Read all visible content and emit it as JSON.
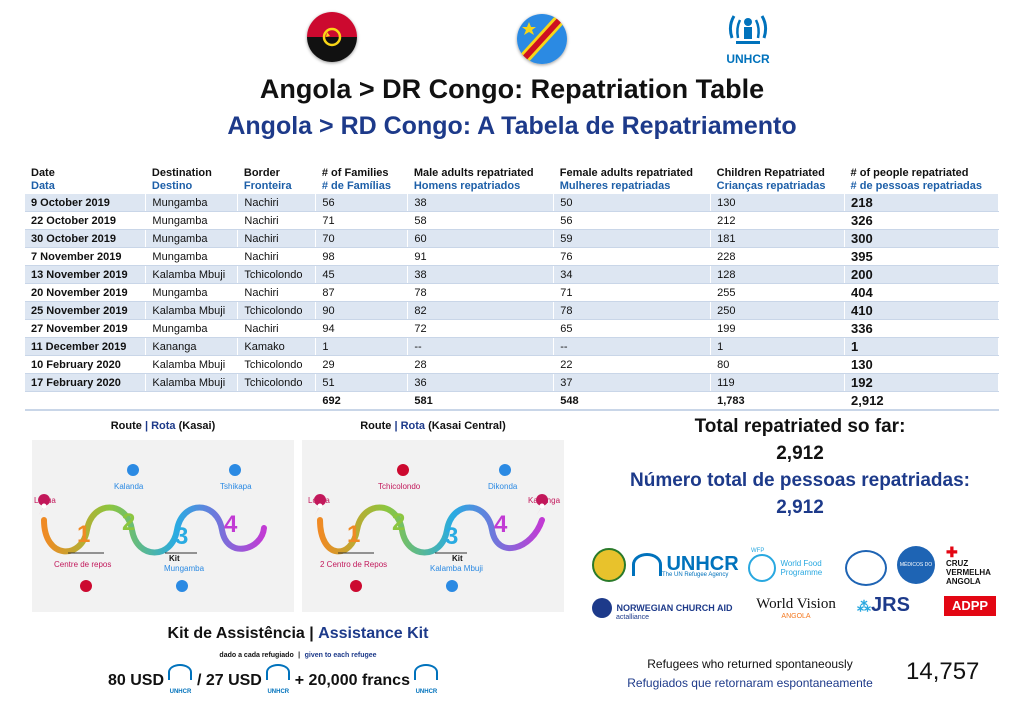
{
  "header": {
    "unhcr_label": "UNHCR",
    "title_en": "Angola > DR Congo: Repatriation Table",
    "title_pt": "Angola > RD Congo: A Tabela de Repatriamento"
  },
  "table": {
    "columns": [
      {
        "en": "Date",
        "pt": "Data"
      },
      {
        "en": "Destination",
        "pt": "Destino"
      },
      {
        "en": "Border",
        "pt": "Fronteira"
      },
      {
        "en": "# of Families",
        "pt": "# de Famílias"
      },
      {
        "en": "Male adults repatriated",
        "pt": "Homens repatriados"
      },
      {
        "en": "Female adults repatriated",
        "pt": "Mulheres repatriadas"
      },
      {
        "en": "Children Repatriated",
        "pt": "Crianças repatriadas"
      },
      {
        "en": "# of people repatriated",
        "pt": "# de pessoas repatriadas"
      }
    ],
    "rows": [
      [
        "9 October 2019",
        "Mungamba",
        "Nachiri",
        "56",
        "38",
        "50",
        "130",
        "218"
      ],
      [
        "22 October 2019",
        "Mungamba",
        "Nachiri",
        "71",
        "58",
        "56",
        "212",
        "326"
      ],
      [
        "30 October 2019",
        "Mungamba",
        "Nachiri",
        "70",
        "60",
        "59",
        "181",
        "300"
      ],
      [
        "7 November 2019",
        "Mungamba",
        "Nachiri",
        "98",
        "91",
        "76",
        "228",
        "395"
      ],
      [
        "13 November 2019",
        "Kalamba Mbuji",
        "Tchicolondo",
        "45",
        "38",
        "34",
        "128",
        "200"
      ],
      [
        "20 November 2019",
        "Mungamba",
        "Nachiri",
        "87",
        "78",
        "71",
        "255",
        "404"
      ],
      [
        "25 November 2019",
        "Kalamba Mbuji",
        "Tchicolondo",
        "90",
        "82",
        "78",
        "250",
        "410"
      ],
      [
        "27 November 2019",
        "Mungamba",
        "Nachiri",
        "94",
        "72",
        "65",
        "199",
        "336"
      ],
      [
        "11 December 2019",
        "Kananga",
        "Kamako",
        "1",
        "--",
        "--",
        "1",
        "1"
      ],
      [
        "10 February 2020",
        "Kalamba Mbuji",
        "Tchicolondo",
        "29",
        "28",
        "22",
        "80",
        "130"
      ],
      [
        "17 February 2020",
        "Kalamba Mbuji",
        "Tchicolondo",
        "51",
        "36",
        "37",
        "119",
        "192"
      ]
    ],
    "totals": [
      "",
      "",
      "",
      "692",
      "581",
      "548",
      "1,783",
      "2,912"
    ]
  },
  "routes": {
    "kasai": {
      "title_en": "Route",
      "sep": "|",
      "title_pt": "Rota",
      "region": "(Kasai)",
      "stops": {
        "start": "Lóvua",
        "s1": "Centre de repos",
        "s2": "Kalanda",
        "s3": "Mungamba",
        "s4": "Tshikapa"
      },
      "kit_label": "Kit"
    },
    "kasai_central": {
      "title_en": "Route",
      "sep": "|",
      "title_pt": "Rota",
      "region": "(Kasai Central)",
      "stops": {
        "start": "Lóvua",
        "s1": "2 Centro de Repos",
        "s2": "Tchicolondo",
        "s3": "Kalamba Mbuji",
        "s4": "Dikonda",
        "end": "Kananga"
      },
      "kit_label": "Kit"
    }
  },
  "kit": {
    "title_pt": "Kit de Assistência",
    "sep": "|",
    "title_en": "Assistance Kit",
    "sub_pt": "dado a cada refugiado",
    "sub_sep": "|",
    "sub_en": "given to each refugee",
    "amount1": "80 USD",
    "amount2": "/ 27 USD",
    "amount3": "+ 20,000 francs",
    "icon_label": "UNHCR"
  },
  "totals": {
    "label_en": "Total repatriated so far:",
    "value_en": "2,912",
    "label_pt": "Número total de pessoas repatriadas:",
    "value_pt": "2,912"
  },
  "partners": {
    "unhcr": "UNHCR",
    "unhcr_sub": "The UN Refugee Agency",
    "wfp_top": "WFP",
    "wfp": "World Food Programme",
    "mdm": "MÉDICOS DO MUNDO",
    "cruz1": "CRUZ",
    "cruz2": "VERMELHA",
    "cruz3": "ANGOLA",
    "nca": "NORWEGIAN CHURCH AID",
    "nca_sub": "actalliance",
    "wv": "World Vision",
    "wv_sub": "ANGOLA",
    "jrs": "JRS",
    "adpp": "ADPP"
  },
  "spontaneous": {
    "label_en": "Refugees who returned spontaneously",
    "label_pt": "Refugiados que retornaram espontaneamente",
    "value": "14,757"
  },
  "colors": {
    "title_blue": "#1d3a8a",
    "row_shade": "#dde6f2",
    "unhcr_blue": "#0072bc"
  }
}
